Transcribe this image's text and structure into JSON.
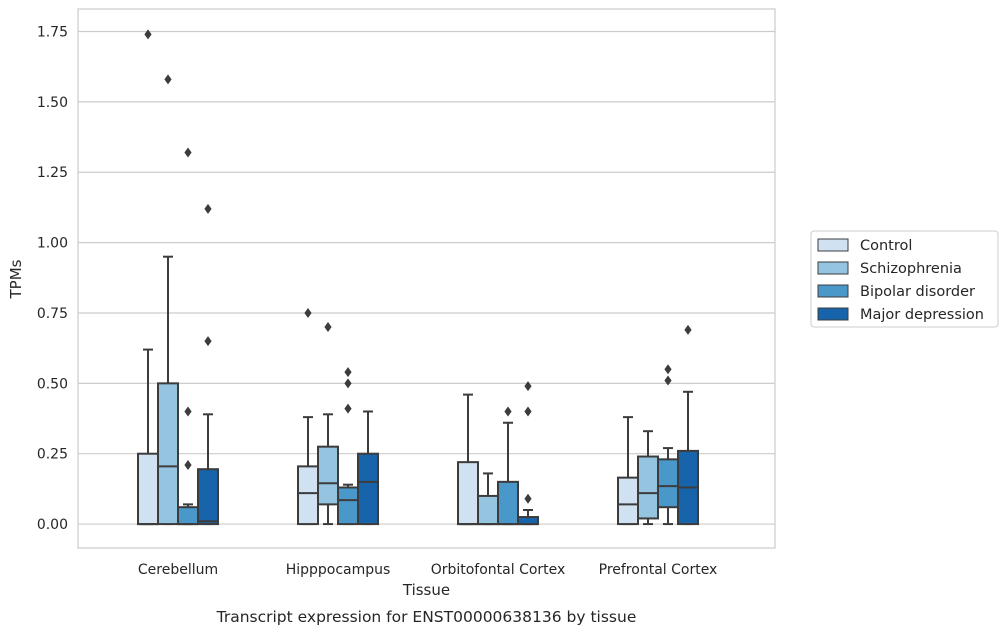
{
  "chart_data": {
    "type": "boxplot",
    "xlabel": "Tissue",
    "ylabel": "TPMs",
    "caption": "Transcript expression for ENST00000638136 by tissue",
    "ylim": [
      -0.085,
      1.83
    ],
    "yticks": [
      0.0,
      0.25,
      0.5,
      0.75,
      1.0,
      1.25,
      1.5,
      1.75
    ],
    "ytick_labels": [
      "0.00",
      "0.25",
      "0.50",
      "0.75",
      "1.00",
      "1.25",
      "1.50",
      "1.75"
    ],
    "grid": "horizontal",
    "legend_position": "right",
    "categories": [
      "Cerebellum",
      "Hipppocampus",
      "Orbitofontal Cortex",
      "Prefrontal Cortex"
    ],
    "series": [
      {
        "name": "Control",
        "color": "#d0e1f2",
        "boxes": [
          {
            "whislo": 0.0,
            "q1": 0.0,
            "med": 0.0,
            "q3": 0.25,
            "whishi": 0.62,
            "fliers": [
              1.74
            ]
          },
          {
            "whislo": 0.0,
            "q1": 0.0,
            "med": 0.11,
            "q3": 0.205,
            "whishi": 0.38,
            "fliers": [
              0.75
            ]
          },
          {
            "whislo": 0.0,
            "q1": 0.0,
            "med": 0.0,
            "q3": 0.22,
            "whishi": 0.46,
            "fliers": []
          },
          {
            "whislo": 0.0,
            "q1": 0.0,
            "med": 0.07,
            "q3": 0.165,
            "whishi": 0.38,
            "fliers": []
          }
        ]
      },
      {
        "name": "Schizophrenia",
        "color": "#94c4df",
        "boxes": [
          {
            "whislo": 0.0,
            "q1": 0.0,
            "med": 0.205,
            "q3": 0.5,
            "whishi": 0.95,
            "fliers": [
              1.58
            ]
          },
          {
            "whislo": 0.0,
            "q1": 0.07,
            "med": 0.145,
            "q3": 0.275,
            "whishi": 0.39,
            "fliers": [
              0.7
            ]
          },
          {
            "whislo": 0.0,
            "q1": 0.0,
            "med": 0.0,
            "q3": 0.1,
            "whishi": 0.18,
            "fliers": []
          },
          {
            "whislo": 0.0,
            "q1": 0.02,
            "med": 0.11,
            "q3": 0.24,
            "whishi": 0.33,
            "fliers": []
          }
        ]
      },
      {
        "name": "Bipolar disorder",
        "color": "#4a98c9",
        "boxes": [
          {
            "whislo": 0.0,
            "q1": 0.0,
            "med": 0.0,
            "q3": 0.06,
            "whishi": 0.07,
            "fliers": [
              0.21,
              0.4,
              1.32
            ]
          },
          {
            "whislo": 0.0,
            "q1": 0.0,
            "med": 0.085,
            "q3": 0.13,
            "whishi": 0.14,
            "fliers": [
              0.41,
              0.5,
              0.54
            ]
          },
          {
            "whislo": 0.0,
            "q1": 0.0,
            "med": 0.0,
            "q3": 0.15,
            "whishi": 0.36,
            "fliers": [
              0.4
            ]
          },
          {
            "whislo": 0.0,
            "q1": 0.06,
            "med": 0.135,
            "q3": 0.23,
            "whishi": 0.27,
            "fliers": [
              0.51,
              0.55
            ]
          }
        ]
      },
      {
        "name": "Major depression",
        "color": "#1764ab",
        "boxes": [
          {
            "whislo": 0.0,
            "q1": 0.0,
            "med": 0.01,
            "q3": 0.195,
            "whishi": 0.39,
            "fliers": [
              0.65,
              1.12
            ]
          },
          {
            "whislo": 0.0,
            "q1": 0.0,
            "med": 0.15,
            "q3": 0.25,
            "whishi": 0.4,
            "fliers": []
          },
          {
            "whislo": 0.0,
            "q1": 0.0,
            "med": 0.0,
            "q3": 0.025,
            "whishi": 0.05,
            "fliers": [
              0.09,
              0.4,
              0.49
            ]
          },
          {
            "whislo": 0.0,
            "q1": 0.0,
            "med": 0.13,
            "q3": 0.26,
            "whishi": 0.47,
            "fliers": [
              0.69
            ]
          }
        ]
      }
    ]
  }
}
